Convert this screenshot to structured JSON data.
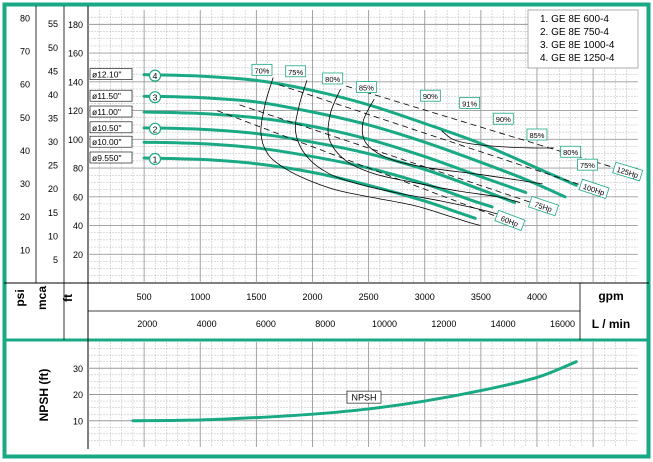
{
  "colors": {
    "frame": "#1aa985",
    "curve": "#1aa985",
    "grid": "#9a9a9a",
    "text": "#000000"
  },
  "legend": {
    "items": [
      "1. GE 8E 600-4",
      "2. GE 8E 750-4",
      "3. GE 8E 1000-4",
      "4. GE 8E 1250-4"
    ]
  },
  "axis_titles": {
    "psi": "psi",
    "mca": "mca",
    "ft": "ft",
    "gpm": "gpm",
    "lmin": "L / min",
    "npsh": "NPSH (ft)"
  },
  "chart_data": [
    {
      "type": "line",
      "title": "",
      "x_axis": {
        "unit": "gpm",
        "range": [
          0,
          4900
        ],
        "ticks": [
          500,
          1000,
          1500,
          2000,
          2500,
          3000,
          3500,
          4000
        ],
        "secondary_unit": "L / min",
        "secondary_ticks": [
          2000,
          4000,
          6000,
          8000,
          10000,
          12000,
          14000,
          16000
        ]
      },
      "y_axis": {
        "unit": "ft",
        "range": [
          0,
          190
        ],
        "ticks": [
          20,
          40,
          60,
          80,
          100,
          120,
          140,
          160,
          180
        ],
        "secondary_unit": "mca",
        "secondary_ticks": [
          5,
          10,
          15,
          20,
          25,
          30,
          35,
          40,
          45,
          50,
          55
        ],
        "tertiary_unit": "psi",
        "tertiary_ticks": [
          10,
          20,
          30,
          40,
          50,
          60,
          70,
          80
        ]
      },
      "grid": true,
      "impellers": [
        {
          "label": "ø12.10\"",
          "curve_id": "4",
          "points": [
            [
              500,
              145
            ],
            [
              1000,
              144
            ],
            [
              1500,
              141
            ],
            [
              2000,
              134
            ],
            [
              2500,
              124
            ],
            [
              3000,
              111
            ],
            [
              3500,
              97
            ],
            [
              4000,
              80
            ],
            [
              4350,
              68
            ]
          ]
        },
        {
          "label": "ø11.50\"",
          "curve_id": "3",
          "points": [
            [
              500,
              130
            ],
            [
              1000,
              129
            ],
            [
              1500,
              126
            ],
            [
              2000,
              119
            ],
            [
              2500,
              110
            ],
            [
              3000,
              98
            ],
            [
              3500,
              84
            ],
            [
              3900,
              72
            ],
            [
              4250,
              60
            ]
          ]
        },
        {
          "label": "ø11.00\"",
          "curve_id": "",
          "points": [
            [
              500,
              119
            ],
            [
              1000,
              118
            ],
            [
              1500,
              115
            ],
            [
              2000,
              109
            ],
            [
              2500,
              100
            ],
            [
              3000,
              88
            ],
            [
              3500,
              74
            ],
            [
              3900,
              63
            ]
          ]
        },
        {
          "label": "ø10.50\"",
          "curve_id": "2",
          "points": [
            [
              500,
              108
            ],
            [
              1000,
              107
            ],
            [
              1500,
              104
            ],
            [
              2000,
              98
            ],
            [
              2500,
              90
            ],
            [
              3000,
              79
            ],
            [
              3500,
              65
            ],
            [
              3800,
              56
            ]
          ]
        },
        {
          "label": "ø10.00\"",
          "curve_id": "",
          "points": [
            [
              500,
              98
            ],
            [
              1000,
              97
            ],
            [
              1500,
              94
            ],
            [
              2000,
              88
            ],
            [
              2500,
              80
            ],
            [
              3000,
              69
            ],
            [
              3400,
              58
            ],
            [
              3600,
              53
            ]
          ]
        },
        {
          "label": "ø9.550\"",
          "curve_id": "1",
          "points": [
            [
              500,
              87
            ],
            [
              1000,
              86
            ],
            [
              1500,
              83
            ],
            [
              2000,
              77
            ],
            [
              2500,
              68
            ],
            [
              3000,
              57
            ],
            [
              3300,
              49
            ],
            [
              3450,
              45
            ]
          ]
        }
      ],
      "efficiency_labels": [
        "70%",
        "75%",
        "80%",
        "85%",
        "90%",
        "91%",
        "90%",
        "85%",
        "80%",
        "75%"
      ],
      "efficiency_curves": [
        {
          "points": [
            [
              1650,
              143
            ],
            [
              1580,
              125
            ],
            [
              1540,
              105
            ],
            [
              1600,
              90
            ],
            [
              1750,
              80
            ],
            [
              1950,
              72
            ],
            [
              2200,
              65
            ],
            [
              2500,
              60
            ],
            [
              2900,
              54
            ],
            [
              3200,
              47
            ],
            [
              3400,
              42
            ],
            [
              3500,
              40
            ]
          ]
        },
        {
          "points": [
            [
              1950,
              141
            ],
            [
              1880,
              123
            ],
            [
              1850,
              105
            ],
            [
              1950,
              88
            ],
            [
              2150,
              76
            ],
            [
              2450,
              68
            ],
            [
              2800,
              62
            ],
            [
              3150,
              57
            ],
            [
              3450,
              52
            ],
            [
              3650,
              48
            ]
          ]
        },
        {
          "points": [
            [
              2250,
              135
            ],
            [
              2160,
              118
            ],
            [
              2150,
              100
            ],
            [
              2300,
              85
            ],
            [
              2550,
              76
            ],
            [
              2900,
              70
            ],
            [
              3300,
              64
            ],
            [
              3650,
              60
            ],
            [
              3850,
              56
            ]
          ]
        },
        {
          "points": [
            [
              2550,
              128
            ],
            [
              2450,
              112
            ],
            [
              2480,
              97
            ],
            [
              2700,
              86
            ],
            [
              3050,
              80
            ],
            [
              3450,
              76
            ],
            [
              3800,
              72
            ],
            [
              4050,
              69
            ]
          ]
        },
        {
          "points": [
            [
              3150,
              106
            ],
            [
              3250,
              100
            ],
            [
              3400,
              97
            ],
            [
              3650,
              95
            ],
            [
              3950,
              94
            ],
            [
              4150,
              94
            ]
          ]
        }
      ],
      "power_lines": [
        {
          "label": "60Hp",
          "points": [
            [
              1150,
              120
            ],
            [
              3650,
              46
            ]
          ]
        },
        {
          "label": "75Hp",
          "points": [
            [
              1350,
              124
            ],
            [
              3950,
              56
            ]
          ]
        },
        {
          "label": "100Hp",
          "points": [
            [
              1700,
              138
            ],
            [
              4400,
              68
            ]
          ]
        },
        {
          "label": "125Hp",
          "points": [
            [
              2300,
              137
            ],
            [
              4700,
              80
            ]
          ]
        }
      ]
    },
    {
      "type": "line",
      "title": "",
      "x_axis": {
        "unit": "gpm",
        "range": [
          0,
          4900
        ]
      },
      "y_axis": {
        "unit": "ft",
        "label": "NPSH (ft)",
        "range": [
          0,
          40
        ],
        "ticks": [
          10,
          20,
          30
        ]
      },
      "grid": true,
      "series": [
        {
          "name": "NPSH",
          "points": [
            [
              400,
              10
            ],
            [
              1000,
              10.3
            ],
            [
              1500,
              11.2
            ],
            [
              2000,
              12.5
            ],
            [
              2500,
              14.5
            ],
            [
              3000,
              17.5
            ],
            [
              3500,
              21.5
            ],
            [
              4000,
              26.5
            ],
            [
              4350,
              32.5
            ]
          ]
        }
      ]
    }
  ]
}
